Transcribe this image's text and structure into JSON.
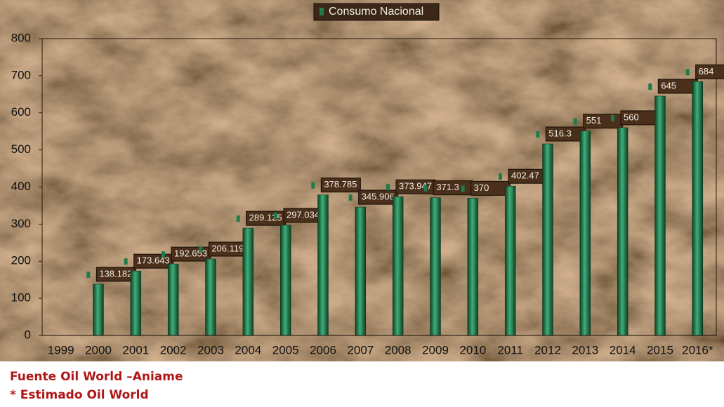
{
  "chart_data": {
    "type": "bar",
    "legend": "Consumo Nacional",
    "categories": [
      "1999",
      "2000",
      "2001",
      "2002",
      "2003",
      "2004",
      "2005",
      "2006",
      "2007",
      "2008",
      "2009",
      "2010",
      "2011",
      "2012",
      "2013",
      "2014",
      "2015",
      "2016*"
    ],
    "values": [
      null,
      138.182,
      173.643,
      192.653,
      206.119,
      289.125,
      297.034,
      378.785,
      345.906,
      373.947,
      371.3,
      370,
      402.47,
      516.3,
      551,
      560,
      645,
      684
    ],
    "color": "#1f7a4d",
    "ylim": [
      0,
      800
    ],
    "yticks": [
      0,
      100,
      200,
      300,
      400,
      500,
      600,
      700,
      800
    ],
    "grid": false,
    "notes": [
      "Fuente Oil World –Aniame",
      "* Estimado Oil World"
    ]
  }
}
